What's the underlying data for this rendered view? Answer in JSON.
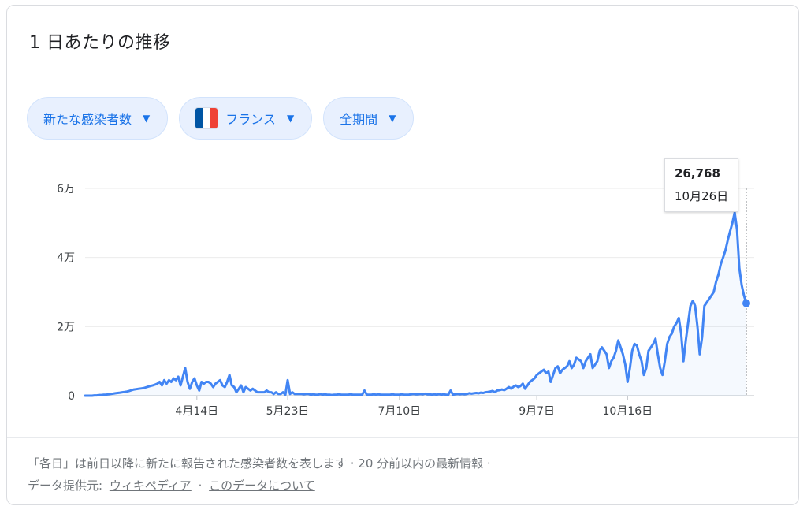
{
  "header": {
    "title": "1 日あたりの推移"
  },
  "filters": {
    "metric": "新たな感染者数",
    "country": "フランス",
    "country_flag_colors": [
      "#0055a4",
      "#ffffff",
      "#ef4135"
    ],
    "period": "全期間"
  },
  "tooltip": {
    "value": "26,768",
    "date": "10月26日"
  },
  "footer": {
    "note": "「各日」は前日以降に新たに報告された感染者数を表します · 20 分前以内の最新情報 ·",
    "source_label": "データ提供元:",
    "source_link": "ウィキペディア",
    "separator": "·",
    "about_link": "このデータについて"
  },
  "chart_data": {
    "type": "line",
    "line_color": "#4285f4",
    "x_start": "2月26日",
    "x_end": "10月26日",
    "x_ticks": [
      "4月14日",
      "5月23日",
      "7月10日",
      "9月7日",
      "10月16日"
    ],
    "x_tick_index": [
      48,
      87,
      135,
      194,
      233
    ],
    "y_ticks": [
      "0",
      "2万",
      "4万",
      "6万"
    ],
    "y_tick_values": [
      0,
      20000,
      40000,
      60000
    ],
    "ylim": [
      0,
      60000
    ],
    "grid": true,
    "series": [
      {
        "values": [
          0,
          0,
          0,
          0,
          100,
          100,
          200,
          200,
          300,
          300,
          400,
          500,
          600,
          700,
          800,
          900,
          1000,
          1100,
          1200,
          1400,
          1600,
          1800,
          1900,
          2000,
          2100,
          2200,
          2400,
          2600,
          2800,
          3000,
          3200,
          3500,
          4000,
          3000,
          4500,
          3500,
          4500,
          4000,
          5000,
          4500,
          5500,
          3000,
          5500,
          8000,
          4000,
          2000,
          4000,
          5000,
          3000,
          1500,
          4000,
          3500,
          4000,
          4000,
          3500,
          2500,
          3500,
          4000,
          4500,
          3000,
          2500,
          4000,
          6000,
          3000,
          2500,
          1000,
          2000,
          3000,
          1000,
          2500,
          2000,
          1500,
          2000,
          1500,
          1000,
          1000,
          1000,
          1000,
          1500,
          1000,
          1000,
          500,
          1000,
          500,
          500,
          1000,
          300,
          4500,
          500,
          1000,
          500,
          500,
          500,
          500,
          400,
          500,
          500,
          300,
          400,
          300,
          300,
          500,
          300,
          400,
          300,
          300,
          200,
          300,
          300,
          400,
          300,
          300,
          300,
          300,
          400,
          300,
          300,
          300,
          300,
          300,
          1500,
          300,
          300,
          300,
          400,
          300,
          400,
          300,
          300,
          300,
          300,
          300,
          400,
          300,
          300,
          300,
          400,
          300,
          300,
          300,
          400,
          500,
          400,
          400,
          500,
          400,
          600,
          400,
          400,
          300,
          400,
          300,
          500,
          300,
          400,
          300,
          300,
          1500,
          300,
          400,
          500,
          400,
          500,
          400,
          500,
          700,
          600,
          700,
          800,
          700,
          900,
          800,
          1000,
          1100,
          1200,
          1400,
          1000,
          1500,
          1600,
          1800,
          1600,
          2000,
          2500,
          2000,
          2600,
          3000,
          2500,
          2800,
          3500,
          2000,
          3000,
          4000,
          4500,
          5000,
          6000,
          6500,
          7000,
          7500,
          6500,
          7000,
          4000,
          6000,
          8000,
          8500,
          6500,
          7500,
          8000,
          8500,
          10000,
          8000,
          9000,
          11000,
          10500,
          10000,
          8000,
          10000,
          11000,
          12000,
          8000,
          9000,
          10000,
          13000,
          14000,
          13000,
          12000,
          8000,
          10000,
          11000,
          13000,
          16000,
          14000,
          12000,
          9000,
          4000,
          8000,
          13000,
          15000,
          14500,
          12000,
          10000,
          6000,
          8000,
          13000,
          14000,
          15000,
          16500,
          12000,
          8000,
          6000,
          10000,
          15000,
          17000,
          18000,
          20000,
          21000,
          22500,
          18000,
          10000,
          16000,
          21000,
          26000,
          27500,
          26000,
          20000,
          12000,
          17000,
          26000,
          27000,
          28000,
          29000,
          30000,
          33000,
          35000,
          38000,
          40000,
          42000,
          45000,
          47500,
          50000,
          53000,
          48000,
          37000,
          32000,
          29000,
          26768
        ]
      }
    ]
  }
}
